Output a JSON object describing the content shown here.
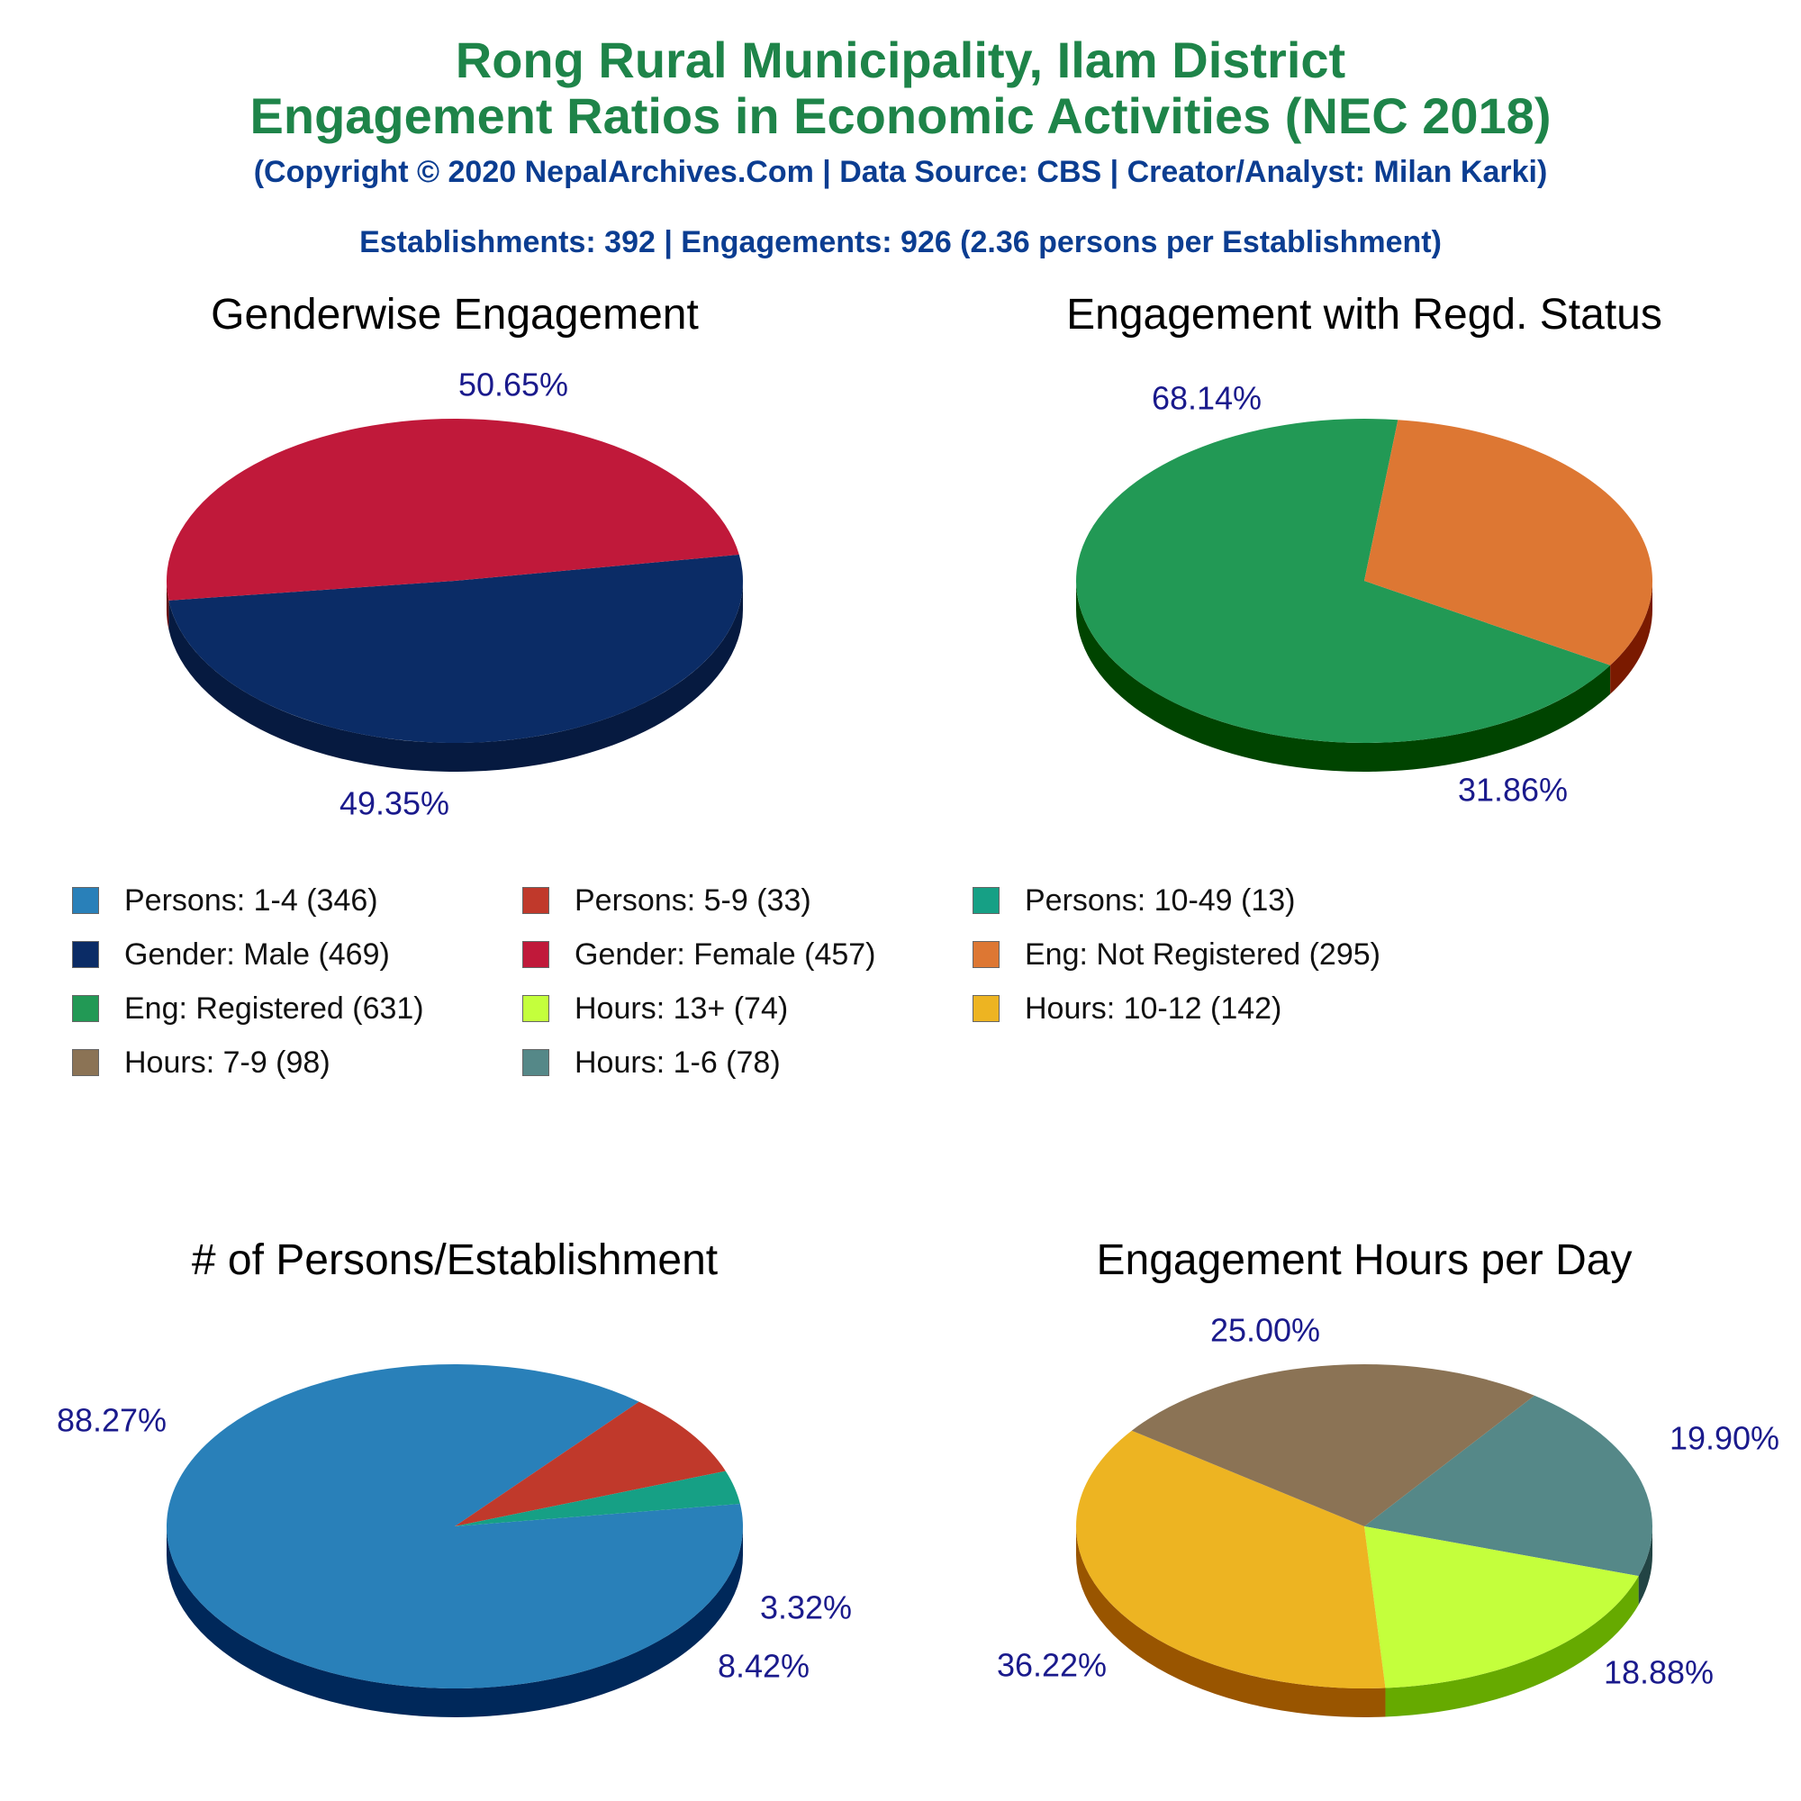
{
  "header": {
    "title_line1": "Rong Rural Municipality, Ilam District",
    "title_line2": "Engagement Ratios in Economic Activities (NEC 2018)",
    "copyright": "(Copyright © 2020 NepalArchives.Com | Data Source: CBS | Creator/Analyst: Milan Karki)",
    "summary": "Establishments: 392 | Engagements: 926 (2.36 persons per Establishment)"
  },
  "legend": [
    {
      "label": "Persons: 1-4 (346)",
      "color": "#2980b9"
    },
    {
      "label": "Persons: 5-9 (33)",
      "color": "#c0392b"
    },
    {
      "label": "Persons: 10-49 (13)",
      "color": "#16a085"
    },
    {
      "label": "Gender: Male (469)",
      "color": "#0b2c66"
    },
    {
      "label": "Gender: Female (457)",
      "color": "#c0193a"
    },
    {
      "label": "Eng: Not Registered (295)",
      "color": "#dd7733"
    },
    {
      "label": "Eng: Registered (631)",
      "color": "#229955"
    },
    {
      "label": "Hours: 13+ (74)",
      "color": "#c4ff3c"
    },
    {
      "label": "Hours: 10-12 (142)",
      "color": "#edb422"
    },
    {
      "label": "Hours: 7-9 (98)",
      "color": "#8b7355"
    },
    {
      "label": "Hours: 1-6 (78)",
      "color": "#558888"
    }
  ],
  "chart_data": [
    {
      "type": "pie",
      "title": "Genderwise Engagement",
      "slices": [
        {
          "name": "Gender: Male",
          "value": 469,
          "percent": "50.65%",
          "color": "#0b2c66",
          "side": "#061a40"
        },
        {
          "name": "Gender: Female",
          "value": 457,
          "percent": "49.35%",
          "color": "#c0193a",
          "side": "#660000"
        }
      ]
    },
    {
      "type": "pie",
      "title": "Engagement with Regd. Status",
      "slices": [
        {
          "name": "Eng: Registered",
          "value": 631,
          "percent": "68.14%",
          "color": "#229955",
          "side": "#004400"
        },
        {
          "name": "Eng: Not Registered",
          "value": 295,
          "percent": "31.86%",
          "color": "#dd7733",
          "side": "#7a1a00"
        }
      ]
    },
    {
      "type": "pie",
      "title": "# of Persons/Establishment",
      "slices": [
        {
          "name": "Persons: 1-4",
          "value": 346,
          "percent": "88.27%",
          "color": "#2980b9",
          "side": "#00285a"
        },
        {
          "name": "Persons: 5-9",
          "value": 33,
          "percent": "8.42%",
          "color": "#c0392b",
          "side": "#6a0000"
        },
        {
          "name": "Persons: 10-49",
          "value": 13,
          "percent": "3.32%",
          "color": "#16a085",
          "side": "#004433"
        }
      ]
    },
    {
      "type": "pie",
      "title": "Engagement Hours per Day",
      "slices": [
        {
          "name": "Hours: 1-6",
          "value": 78,
          "percent": "19.90%",
          "color": "#558888",
          "side": "#224444"
        },
        {
          "name": "Hours: 13+",
          "value": 74,
          "percent": "18.88%",
          "color": "#c4ff3c",
          "side": "#66aa00"
        },
        {
          "name": "Hours: 10-12",
          "value": 142,
          "percent": "36.22%",
          "color": "#edb422",
          "side": "#995500"
        },
        {
          "name": "Hours: 7-9",
          "value": 98,
          "percent": "25.00%",
          "color": "#8b7355",
          "side": "#443322"
        }
      ]
    }
  ]
}
